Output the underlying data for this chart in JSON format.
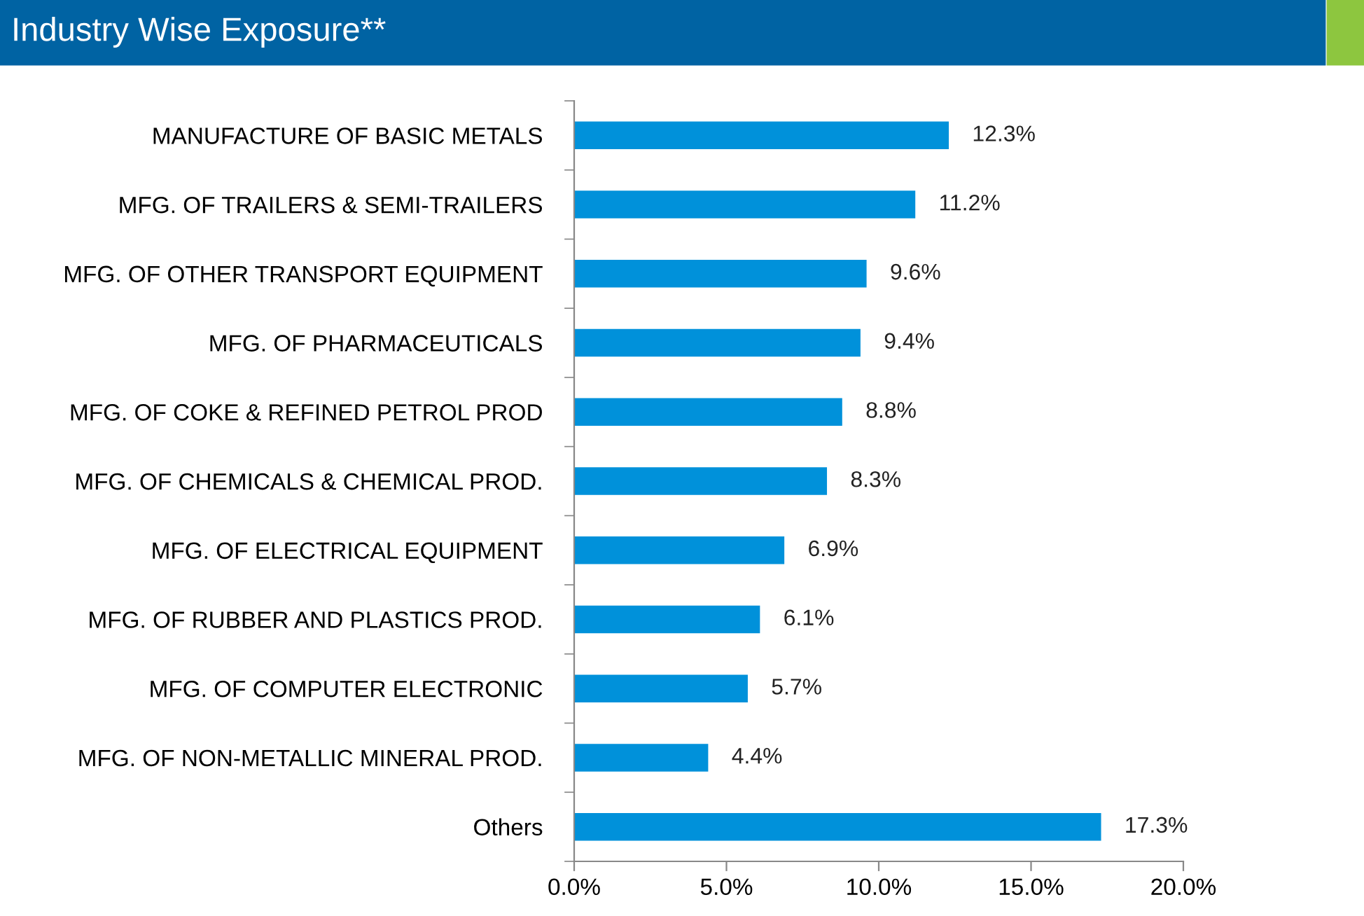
{
  "chart_data": {
    "type": "bar",
    "orientation": "horizontal",
    "title": "Industry Wise Exposure**",
    "categories": [
      "MANUFACTURE OF BASIC METALS",
      "MFG. OF TRAILERS & SEMI-TRAILERS",
      "MFG. OF OTHER TRANSPORT EQUIPMENT",
      "MFG. OF PHARMACEUTICALS",
      "MFG. OF COKE & REFINED PETROL PROD",
      "MFG. OF CHEMICALS & CHEMICAL PROD.",
      "MFG. OF ELECTRICAL EQUIPMENT",
      "MFG. OF RUBBER AND PLASTICS PROD.",
      "MFG. OF COMPUTER ELECTRONIC",
      "MFG. OF NON-METALLIC MINERAL PROD.",
      "Others"
    ],
    "values": [
      12.3,
      11.2,
      9.6,
      9.4,
      8.8,
      8.3,
      6.9,
      6.1,
      5.7,
      4.4,
      17.3
    ],
    "value_labels": [
      "12.3%",
      "11.2%",
      "9.6%",
      "9.4%",
      "8.8%",
      "8.3%",
      "6.9%",
      "6.1%",
      "5.7%",
      "4.4%",
      "17.3%"
    ],
    "color": "#0091da",
    "xlim": [
      0,
      20
    ],
    "xticks": [
      {
        "value": 0,
        "label": "0.0%"
      },
      {
        "value": 5,
        "label": "5.0%"
      },
      {
        "value": 10,
        "label": "10.0%"
      },
      {
        "value": 15,
        "label": "15.0%"
      },
      {
        "value": 20,
        "label": "20.0%"
      }
    ],
    "grid": false,
    "legend": false
  }
}
